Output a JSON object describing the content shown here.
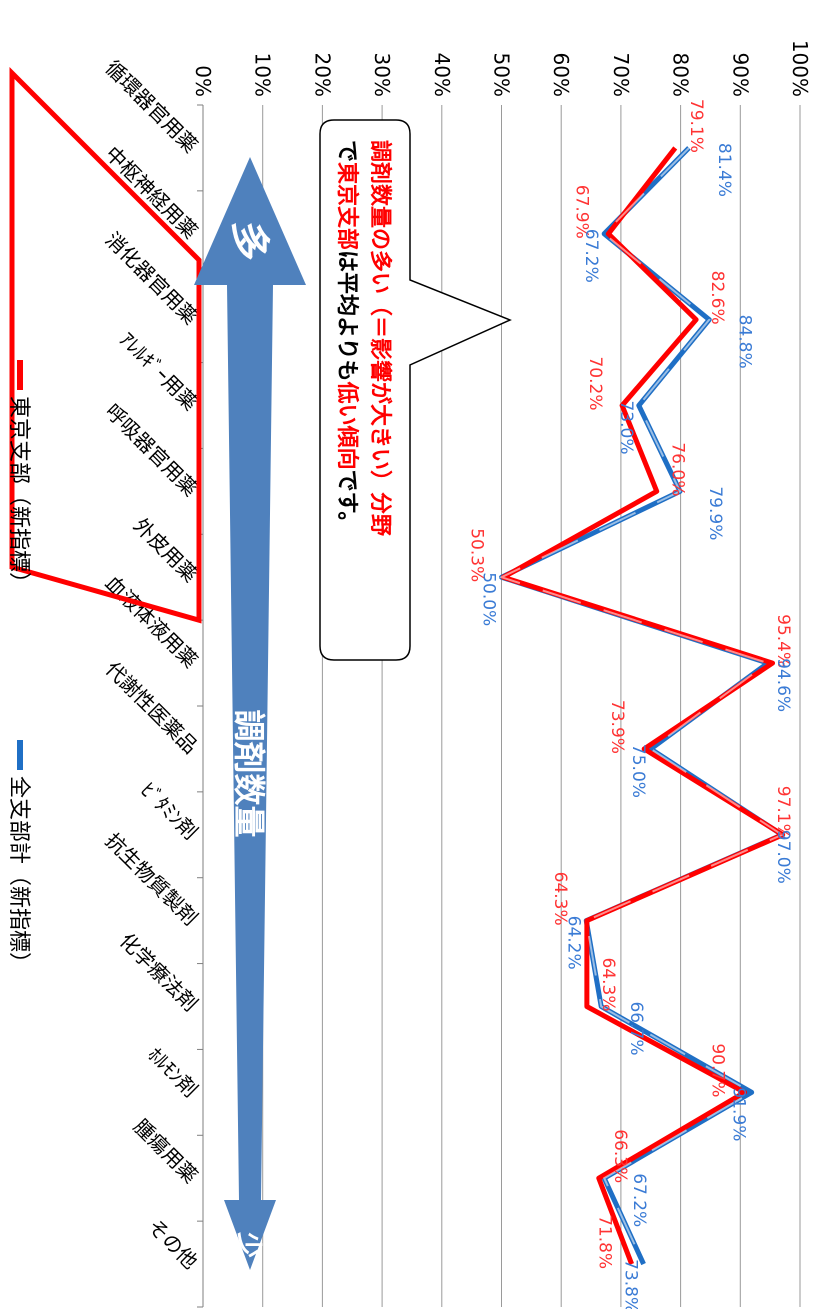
{
  "chart_data": {
    "type": "line",
    "orientation": "rotated-90-clockwise",
    "categories": [
      "循環器官用薬",
      "中枢神経用薬",
      "消化器官用薬",
      "アレルギー用薬",
      "呼吸器官用薬",
      "外皮用薬",
      "血液体液用薬",
      "代謝性医薬品",
      "ビタミン剤",
      "抗生物質製剤",
      "化学療法剤",
      "ホルモン剤",
      "腫瘍用薬",
      "その他"
    ],
    "category_labels": [
      "循環器官用薬",
      "中枢神経用薬",
      "消化器官用薬",
      "ｱﾚﾙｷﾞｰ用薬",
      "呼吸器官用薬",
      "外皮用薬",
      "血液体液用薬",
      "代謝性医薬品",
      "ﾋﾞﾀﾐﾝ剤",
      "抗生物質製剤",
      "化学療法剤",
      "ﾎﾙﾓﾝ剤",
      "腫瘍用薬",
      "その他"
    ],
    "ylim": [
      0,
      100
    ],
    "yticks": [
      "0%",
      "10%",
      "20%",
      "30%",
      "40%",
      "50%",
      "60%",
      "70%",
      "80%",
      "90%",
      "100%"
    ],
    "grid": true,
    "series": [
      {
        "name": "東京支部（新指標）",
        "color": "#ff0000",
        "values": [
          79.1,
          67.9,
          82.6,
          70.2,
          76.0,
          50.3,
          95.4,
          73.9,
          97.1,
          64.3,
          64.3,
          90.7,
          66.3,
          71.8
        ],
        "labels": [
          "79.1%",
          "67.9%",
          "82.6%",
          "70.2%",
          "76.0%",
          "50.3%",
          "95.4%",
          "73.9%",
          "97.1%",
          "64.3%",
          "64.3%",
          "90.7%",
          "66.3%",
          "71.8%"
        ]
      },
      {
        "name": "全支部計（新指標）",
        "color": "#1f6fc5",
        "values": [
          81.4,
          67.2,
          84.8,
          73.0,
          79.9,
          50.0,
          94.6,
          75.0,
          97.0,
          64.2,
          66.7,
          91.9,
          67.2,
          73.8
        ],
        "labels": [
          "81.4%",
          "67.2%",
          "84.8%",
          "73.0%",
          "79.9%",
          "50.0%",
          "94.6%",
          "75.0%",
          "97.0%",
          "64.2%",
          "66.7%",
          "91.9%",
          "67.2%",
          "73.8%"
        ]
      }
    ],
    "legend_position": "bottom",
    "highlight_group_count": 6,
    "callout": {
      "segments": [
        {
          "text": "調剤数量の多い（＝影響が大きい）分野",
          "color": "red"
        },
        {
          "text": "で",
          "color": "black"
        },
        {
          "text": "東京支部",
          "color": "red"
        },
        {
          "text": "は平均よりも",
          "color": "black"
        },
        {
          "text": "低い傾向",
          "color": "red"
        },
        {
          "text": "です。",
          "color": "black"
        }
      ]
    },
    "arrow": {
      "label": "調剤数量",
      "high_label": "多",
      "low_label": "少",
      "color": "#4f81bd"
    }
  }
}
